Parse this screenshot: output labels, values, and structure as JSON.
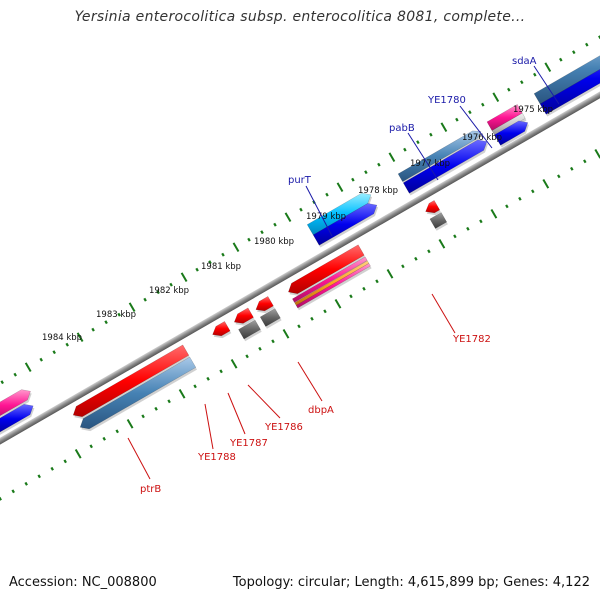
{
  "title": "Yersinia enterocolitica subsp. enterocolitica 8081, complete...",
  "accession_text": "Accession: NC_008800",
  "summary_text": "Topology: circular; Length: 4,615,899 bp; Genes: 4,122",
  "colors": {
    "forward_label": "#1a1aa8",
    "reverse_label": "#cc1111",
    "backbone": "#888888",
    "tick": "#1a7a1a"
  },
  "kbp_ticks": [
    "1975 kbp",
    "1976 kbp",
    "1977 kbp",
    "1978 kbp",
    "1979 kbp",
    "1980 kbp",
    "1981 kbp",
    "1982 kbp",
    "1983 kbp",
    "1984 kbp"
  ],
  "forward_labels": [
    "sdaA",
    "YE1780",
    "pabB",
    "purT"
  ],
  "reverse_labels": [
    "YE1782",
    "dbpA",
    "YE1786",
    "YE1787",
    "YE1788",
    "ptrB"
  ]
}
